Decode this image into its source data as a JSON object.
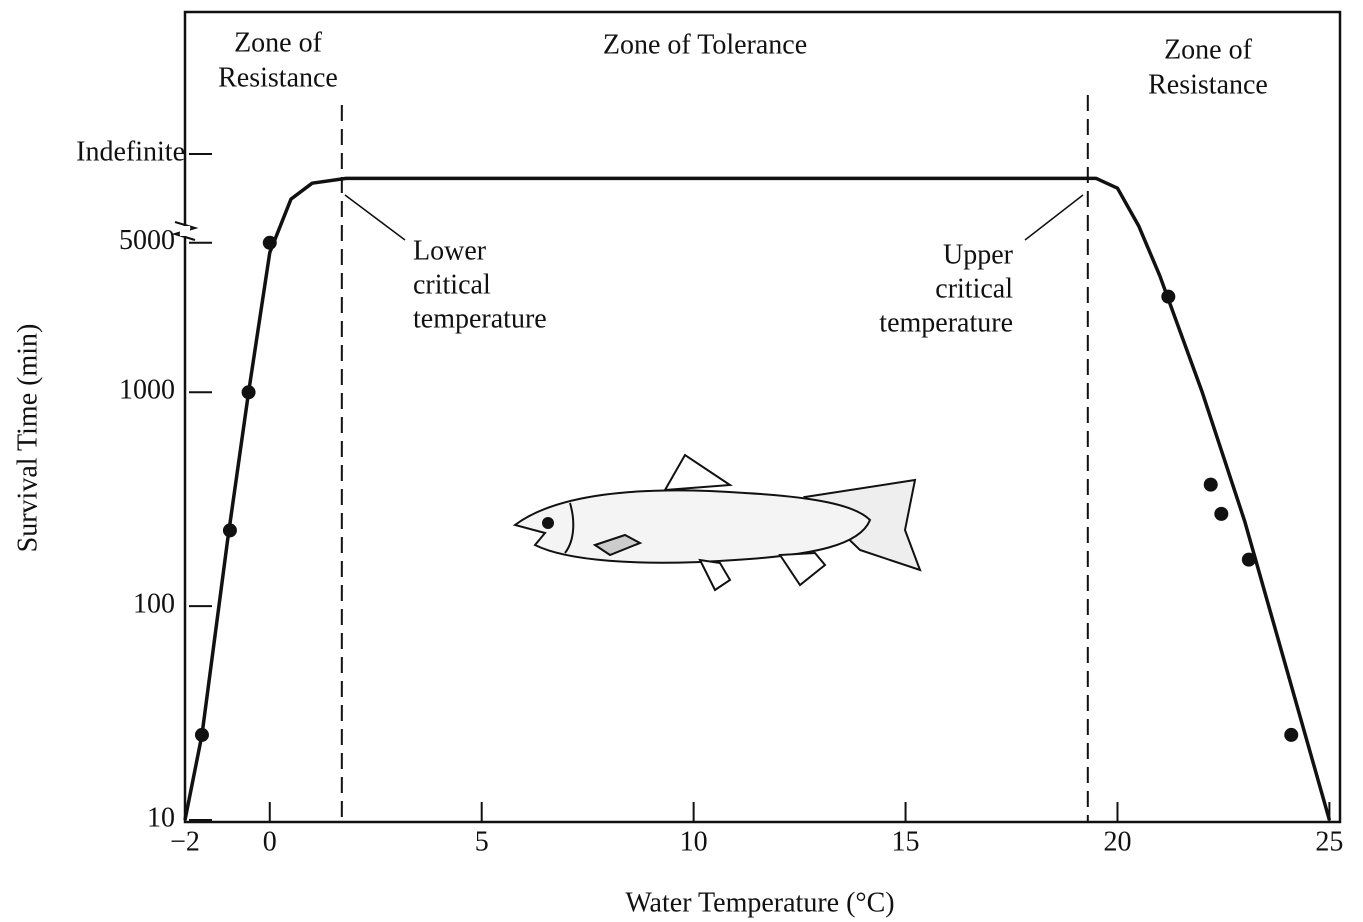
{
  "chart_data": {
    "type": "scatter",
    "y_label": "Survival Time (min)",
    "x_label": "Water Temperature (°C)",
    "log_y": true,
    "color": "#111111",
    "xlim": [
      -2,
      25.25
    ],
    "ylim": [
      10,
      60000
    ],
    "xticks": [
      {
        "value": -2,
        "label": "−2"
      },
      0,
      5,
      10,
      15,
      20,
      25
    ],
    "yticks": [
      10,
      100,
      1000,
      5000,
      {
        "value": 13000,
        "label": "Indefinite"
      }
    ],
    "x": [
      -1.6,
      -0.94,
      -0.5,
      0,
      21.2,
      22.2,
      22.45,
      23.1,
      24.1
    ],
    "values": [
      25,
      226,
      1000,
      5000,
      2800,
      370,
      270,
      165,
      25
    ],
    "curve": {
      "x": [
        -2,
        -1.6,
        -1,
        -0.5,
        0,
        0.5,
        1,
        1.8,
        19.5,
        20,
        20.5,
        21,
        22,
        23,
        24,
        25
      ],
      "values": [
        10,
        25,
        200,
        1000,
        4500,
        8000,
        9500,
        10000,
        10000,
        9000,
        6000,
        3500,
        1000,
        250,
        50,
        10
      ]
    },
    "critical": {
      "lower": 1.7,
      "upper": 19.3
    },
    "annotations": {
      "zone_left": [
        "Zone of",
        "Resistance"
      ],
      "zone_middle": "Zone of Tolerance",
      "zone_right": [
        "Zone of",
        "Resistance"
      ],
      "lower_label": [
        "Lower",
        "critical",
        "temperature"
      ],
      "upper_label": [
        "Upper",
        "critical",
        "temperature"
      ]
    }
  }
}
